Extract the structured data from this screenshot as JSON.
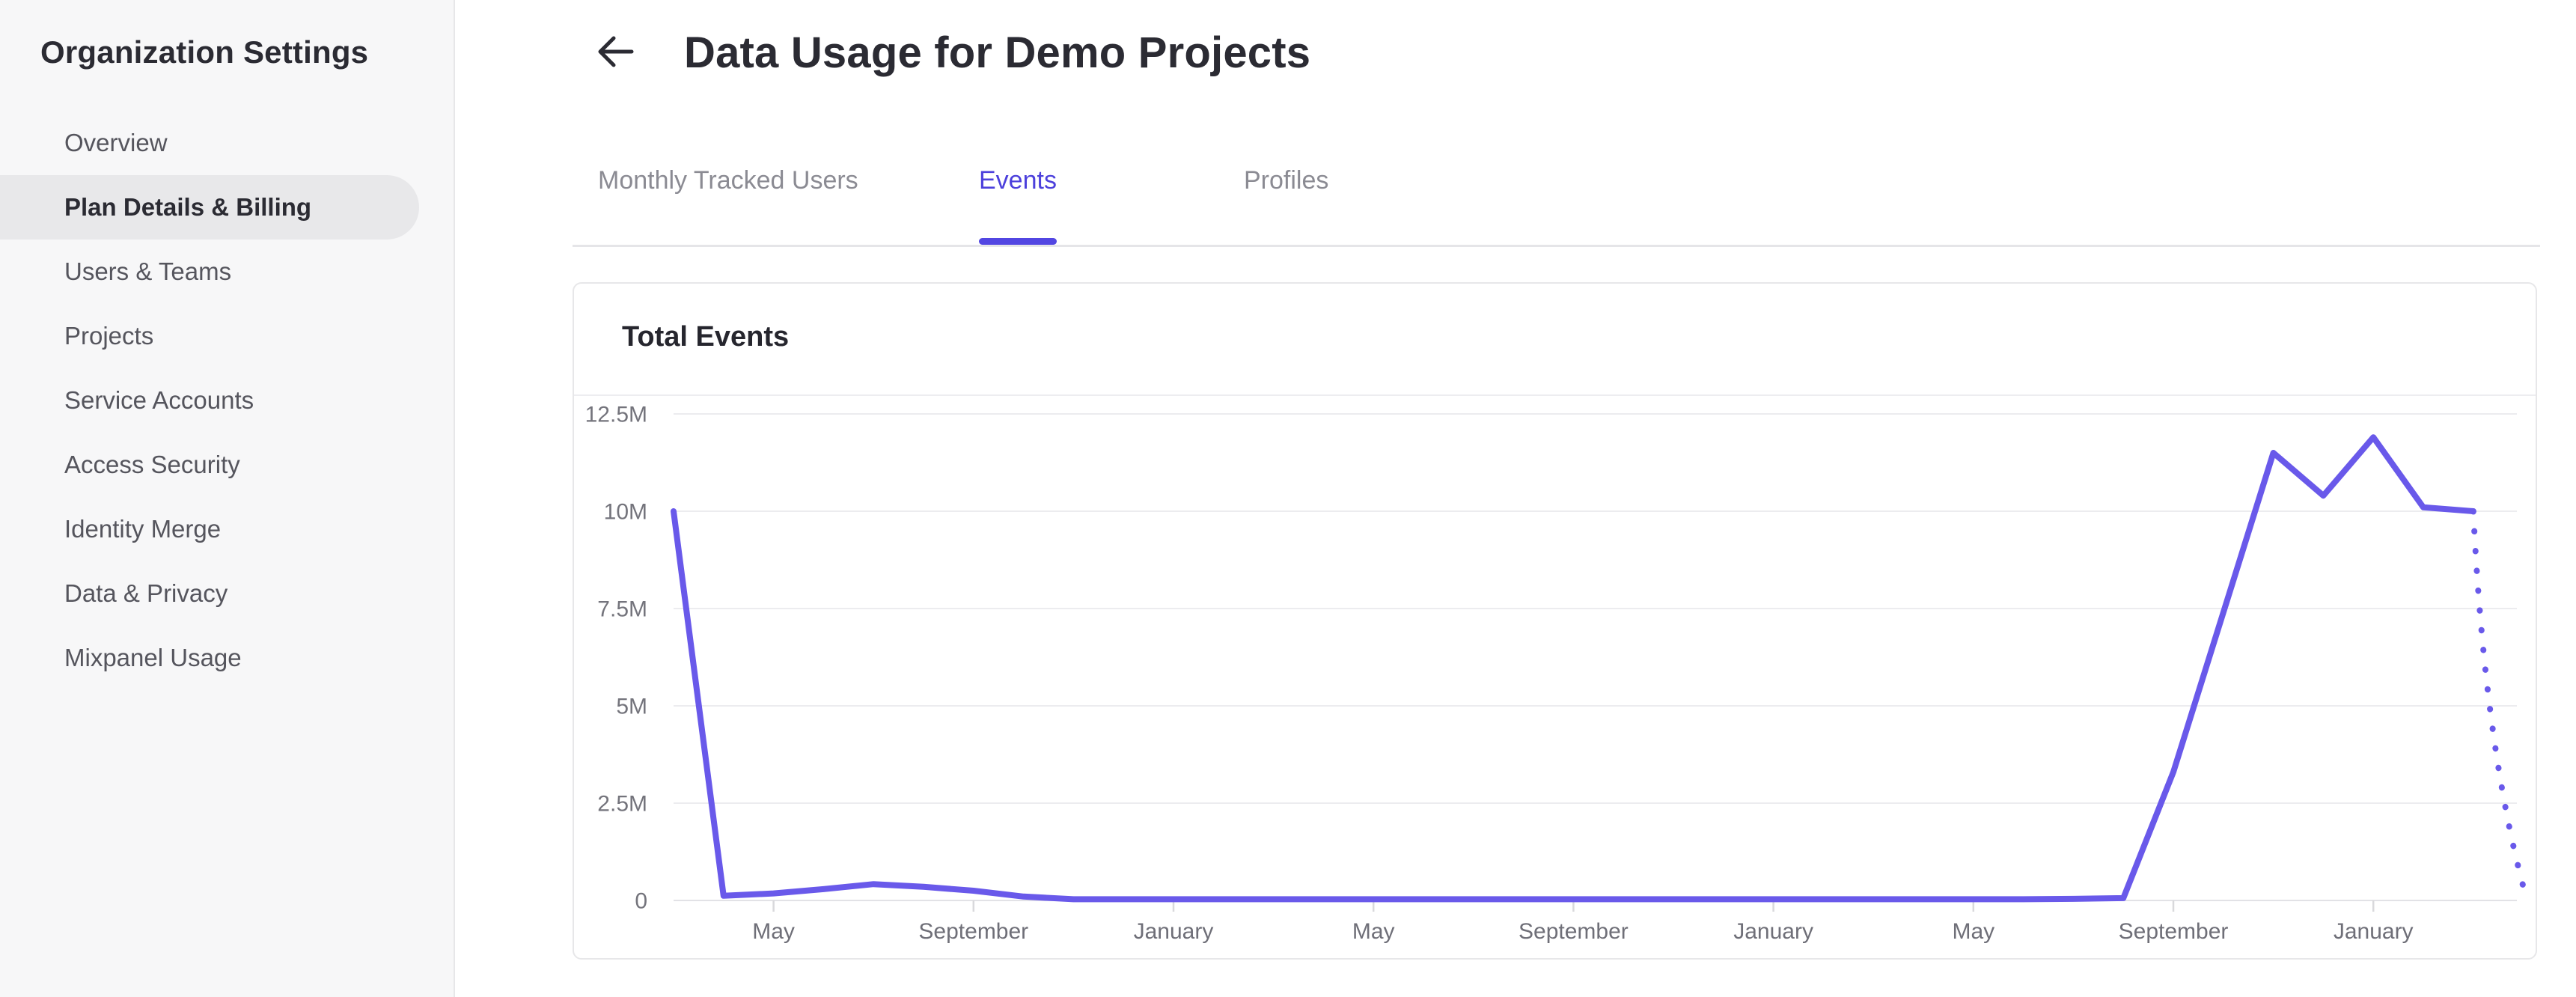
{
  "sidebar": {
    "title": "Organization Settings",
    "items": [
      {
        "label": "Overview",
        "selected": false
      },
      {
        "label": "Plan Details & Billing",
        "selected": true
      },
      {
        "label": "Users & Teams",
        "selected": false
      },
      {
        "label": "Projects",
        "selected": false
      },
      {
        "label": "Service Accounts",
        "selected": false
      },
      {
        "label": "Access Security",
        "selected": false
      },
      {
        "label": "Identity Merge",
        "selected": false
      },
      {
        "label": "Data & Privacy",
        "selected": false
      },
      {
        "label": "Mixpanel Usage",
        "selected": false
      }
    ]
  },
  "header": {
    "back_icon": "left-arrow-icon",
    "title": "Data Usage for Demo Projects"
  },
  "tabs": [
    {
      "label": "Monthly Tracked Users",
      "active": false
    },
    {
      "label": "Events",
      "active": true
    },
    {
      "label": "Profiles",
      "active": false
    }
  ],
  "card": {
    "title": "Total Events"
  },
  "colors": {
    "accent": "#4c40dc",
    "underline": "#5246e2",
    "line": "#6959ea",
    "tab_inactive": "#8b8b93",
    "text_dark": "#2b2b33",
    "sidebar_bg": "#f7f7f8",
    "pill_bg": "#e8e8ea",
    "border": "#e7e7e9",
    "grid": "#ececef",
    "axis_label": "#74747c"
  },
  "chart_data": {
    "type": "line",
    "title": "Total Events",
    "legend": "none",
    "grid": true,
    "ylim": [
      0,
      12500000
    ],
    "y_ticks": [
      {
        "label": "12.5M",
        "value": 12500000
      },
      {
        "label": "10M",
        "value": 10000000
      },
      {
        "label": "7.5M",
        "value": 7500000
      },
      {
        "label": "5M",
        "value": 5000000
      },
      {
        "label": "2.5M",
        "value": 2500000
      },
      {
        "label": "0",
        "value": 0
      }
    ],
    "x_ticks": [
      {
        "label": "May",
        "month_offset": 2
      },
      {
        "label": "September",
        "month_offset": 6
      },
      {
        "label": "January",
        "month_offset": 10
      },
      {
        "label": "May",
        "month_offset": 14
      },
      {
        "label": "September",
        "month_offset": 18
      },
      {
        "label": "January",
        "month_offset": 22
      },
      {
        "label": "May",
        "month_offset": 26
      },
      {
        "label": "September",
        "month_offset": 30
      },
      {
        "label": "January",
        "month_offset": 34
      }
    ],
    "series": [
      {
        "name": "Total Events",
        "style": "solid",
        "points": [
          [
            0,
            10000000
          ],
          [
            1,
            120000
          ],
          [
            2,
            180000
          ],
          [
            3,
            290000
          ],
          [
            4,
            420000
          ],
          [
            5,
            350000
          ],
          [
            6,
            250000
          ],
          [
            7,
            100000
          ],
          [
            8,
            30000
          ],
          [
            9,
            30000
          ],
          [
            10,
            30000
          ],
          [
            11,
            30000
          ],
          [
            12,
            30000
          ],
          [
            13,
            30000
          ],
          [
            14,
            30000
          ],
          [
            15,
            30000
          ],
          [
            16,
            30000
          ],
          [
            17,
            30000
          ],
          [
            18,
            30000
          ],
          [
            19,
            30000
          ],
          [
            20,
            30000
          ],
          [
            21,
            30000
          ],
          [
            22,
            30000
          ],
          [
            23,
            30000
          ],
          [
            24,
            30000
          ],
          [
            25,
            30000
          ],
          [
            26,
            30000
          ],
          [
            27,
            30000
          ],
          [
            28,
            40000
          ],
          [
            29,
            60000
          ],
          [
            30,
            3300000
          ],
          [
            31,
            7400000
          ],
          [
            32,
            11500000
          ],
          [
            33,
            10400000
          ],
          [
            34,
            11900000
          ],
          [
            35,
            10100000
          ],
          [
            36,
            10000000
          ]
        ]
      }
    ],
    "projected_series": {
      "name": "Total Events (incomplete period)",
      "style": "dotted",
      "points": [
        [
          36,
          10000000
        ],
        [
          37,
          350000
        ]
      ]
    }
  }
}
